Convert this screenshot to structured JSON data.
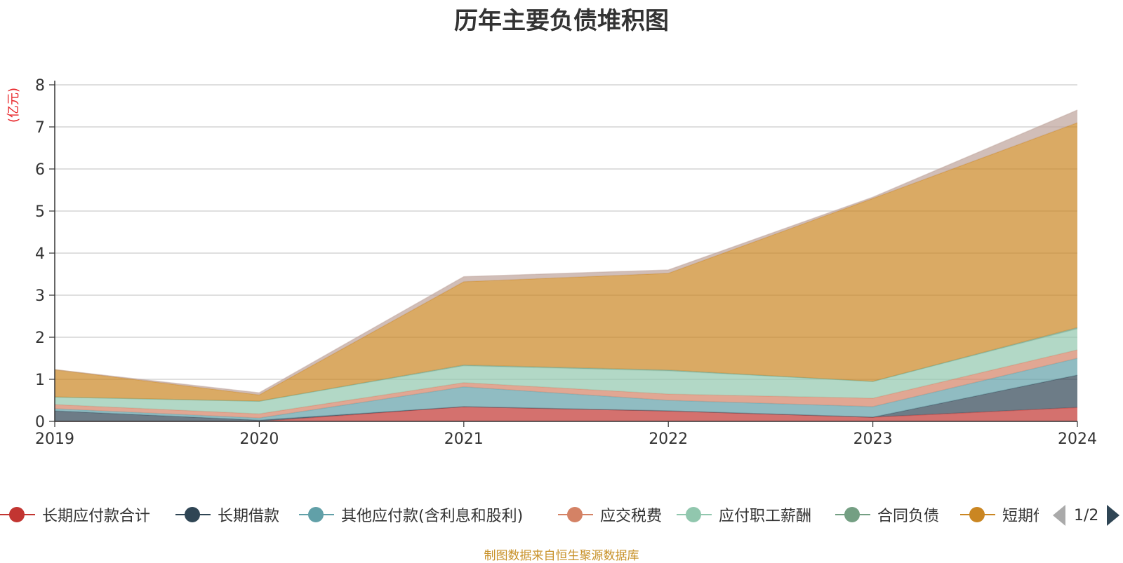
{
  "chart_data": {
    "type": "area",
    "stacked": true,
    "title": "历年主要负债堆积图",
    "unit_label": "(亿元)",
    "categories": [
      "2019",
      "2020",
      "2021",
      "2022",
      "2023",
      "2024"
    ],
    "ylim": [
      0,
      8
    ],
    "yticks": [
      "0",
      "1",
      "2",
      "3",
      "4",
      "5",
      "6",
      "7",
      "8"
    ],
    "grid": true,
    "legend_position": "bottom",
    "series": [
      {
        "name": "长期应付款合计",
        "color": "#c23531",
        "values": [
          0.0,
          0.0,
          0.35,
          0.25,
          0.1,
          0.33
        ]
      },
      {
        "name": "长期借款",
        "color": "#2f4554",
        "values": [
          0.25,
          0.03,
          0.0,
          0.0,
          0.0,
          0.77
        ]
      },
      {
        "name": "其他应付款(含利息和股利)",
        "color": "#61a0a8",
        "values": [
          0.05,
          0.05,
          0.47,
          0.25,
          0.25,
          0.4
        ]
      },
      {
        "name": "应交税费",
        "color": "#d48265",
        "values": [
          0.1,
          0.1,
          0.1,
          0.15,
          0.2,
          0.2
        ]
      },
      {
        "name": "应付职工薪酬",
        "color": "#91c7ae",
        "values": [
          0.18,
          0.3,
          0.4,
          0.55,
          0.4,
          0.5
        ]
      },
      {
        "name": "合同负债",
        "color": "#749f83",
        "values": [
          0.0,
          0.0,
          0.02,
          0.02,
          0.0,
          0.03
        ]
      },
      {
        "name": "短期借款",
        "color": "#ca8622",
        "values": [
          0.65,
          0.15,
          1.98,
          2.3,
          4.35,
          4.87
        ]
      },
      {
        "name": "",
        "color": "#bda29a",
        "values": [
          0.0,
          0.05,
          0.12,
          0.08,
          0.03,
          0.3
        ]
      }
    ]
  },
  "legend": {
    "items": [
      {
        "label": "长期应付款合计",
        "color": "#c23531"
      },
      {
        "label": "长期借款",
        "color": "#2f4554"
      },
      {
        "label": "其他应付款(含利息和股利)",
        "color": "#61a0a8"
      },
      {
        "label": "应交税费",
        "color": "#d48265"
      },
      {
        "label": "应付职工薪酬",
        "color": "#91c7ae"
      },
      {
        "label": "合同负债",
        "color": "#749f83"
      },
      {
        "label": "短期借款",
        "color": "#ca8622"
      }
    ],
    "page": "1/2"
  },
  "source": "制图数据来自恒生聚源数据库"
}
